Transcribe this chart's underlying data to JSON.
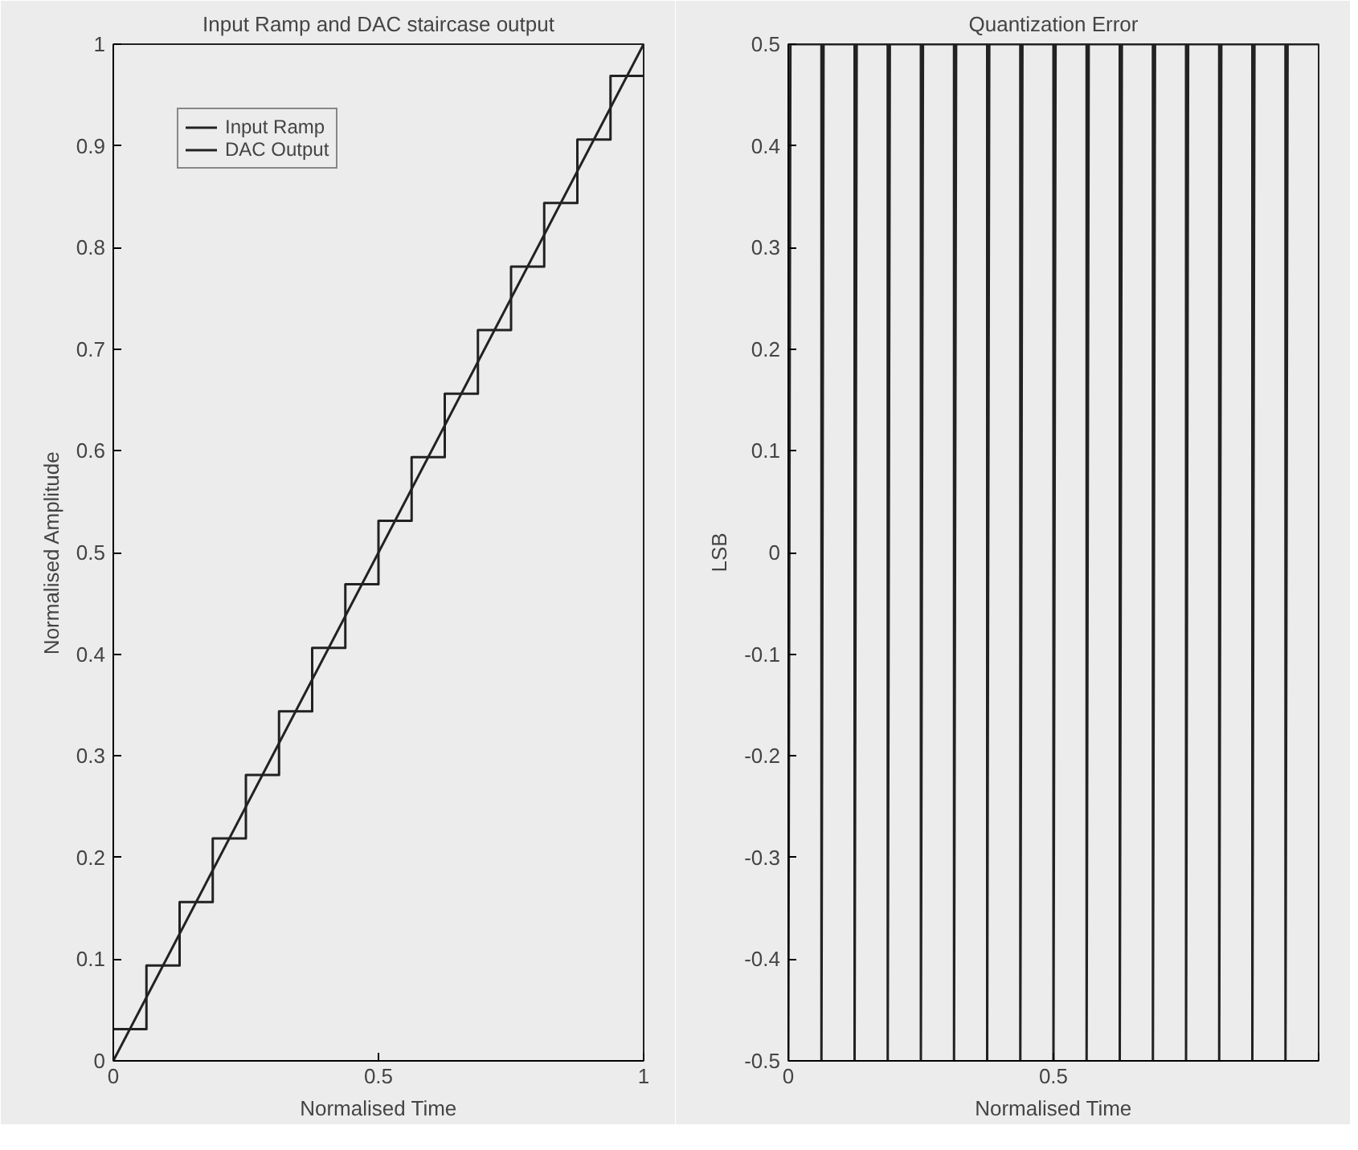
{
  "chart_data": [
    {
      "type": "line",
      "title": "Input Ramp and DAC staircase output",
      "xlabel": "Normalised Time",
      "ylabel": "Normalised Amplitude",
      "xlim": [
        0,
        1
      ],
      "ylim": [
        0,
        1
      ],
      "xticks": [
        0,
        0.5,
        1
      ],
      "yticks": [
        0,
        0.1,
        0.2,
        0.3,
        0.4,
        0.5,
        0.6,
        0.7,
        0.8,
        0.9,
        1
      ],
      "grid": false,
      "legend": "top left",
      "line_style": "solid",
      "series": [
        {
          "name": "Input Ramp",
          "color": "#222222",
          "x": [
            0,
            1
          ],
          "values": [
            0,
            1
          ]
        },
        {
          "name": "DAC Output",
          "type": "step",
          "color": "#222222",
          "x": [
            0,
            0.0625,
            0.125,
            0.1875,
            0.25,
            0.3125,
            0.375,
            0.4375,
            0.5,
            0.5625,
            0.625,
            0.6875,
            0.75,
            0.8125,
            0.875,
            0.9375,
            1
          ],
          "values": [
            0.03125,
            0.09375,
            0.15625,
            0.21875,
            0.28125,
            0.34375,
            0.40625,
            0.46875,
            0.53125,
            0.59375,
            0.65625,
            0.71875,
            0.78125,
            0.84375,
            0.90625,
            0.96875,
            0.96875
          ]
        }
      ]
    },
    {
      "type": "line",
      "title": "Quantization Error",
      "xlabel": "Normalised Time",
      "ylabel": "LSB",
      "xlim": [
        0,
        1
      ],
      "ylim": [
        -0.5,
        0.5
      ],
      "xticks": [
        0,
        0.5,
        {
          "value": 1,
          "label": null
        }
      ],
      "yticks": [
        -0.5,
        -0.4,
        -0.3,
        -0.2,
        -0.1,
        0,
        0.1,
        0.2,
        0.3,
        0.4,
        0.5
      ],
      "grid": false,
      "line_style": "solid",
      "series": [
        {
          "color": "#222222",
          "x": [
            0,
            0.004,
            0.0625,
            0.0625,
            0.0665,
            0.125,
            0.125,
            0.129,
            0.1875,
            0.1875,
            0.1915,
            0.25,
            0.25,
            0.254,
            0.3125,
            0.3125,
            0.3165,
            0.375,
            0.375,
            0.379,
            0.4375,
            0.4375,
            0.4415,
            0.5,
            0.5,
            0.504,
            0.5625,
            0.5625,
            0.5665,
            0.625,
            0.625,
            0.629,
            0.6875,
            0.6875,
            0.6915,
            0.75,
            0.75,
            0.754,
            0.8125,
            0.8125,
            0.8165,
            0.875,
            0.875,
            0.879,
            0.9375,
            0.9375,
            0.9415,
            1
          ],
          "values": [
            -0.5,
            0.5,
            0.5,
            -0.5,
            0.5,
            0.5,
            -0.5,
            0.5,
            0.5,
            -0.5,
            0.5,
            0.5,
            -0.5,
            0.5,
            0.5,
            -0.5,
            0.5,
            0.5,
            -0.5,
            0.5,
            0.5,
            -0.5,
            0.5,
            0.5,
            -0.5,
            0.5,
            0.5,
            -0.5,
            0.5,
            0.5,
            -0.5,
            0.5,
            0.5,
            -0.5,
            0.5,
            0.5,
            -0.5,
            0.5,
            0.5,
            -0.5,
            0.5,
            0.5,
            -0.5,
            0.5,
            0.5,
            -0.5,
            0.5,
            0.5
          ]
        }
      ]
    }
  ]
}
